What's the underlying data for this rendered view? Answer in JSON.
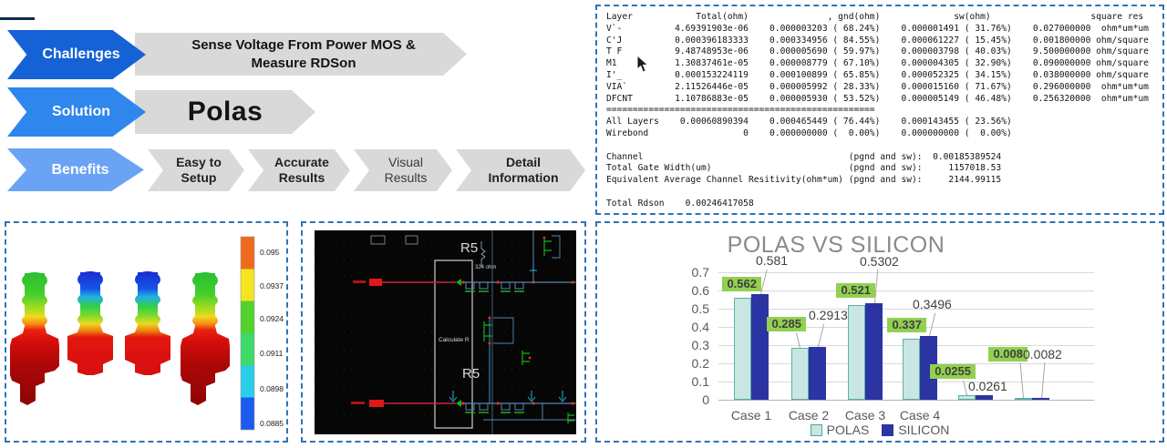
{
  "flow": {
    "challenges": {
      "label": "Challenges",
      "text": "Sense Voltage From Power MOS &  Measure RDSon"
    },
    "solution": {
      "label": "Solution",
      "text": "Polas"
    },
    "benefits": {
      "label": "Benefits",
      "steps": [
        "Easy to Setup",
        "Accurate Results",
        "Visual Results",
        "Detail Information"
      ]
    }
  },
  "terminal": {
    "lines": [
      "Layer            Total(ohm)               , gnd(ohm)              sw(ohm)                   square res",
      "V`-          4.69391903e-06    0.000003203 ( 68.24%)    0.000001491 ( 31.76%)    0.027000000  ohm*um*um",
      "C'J          0.000396183333    0.000334956 ( 84.55%)    0.000061227 ( 15.45%)    0.001800000 ohm/square",
      "T F          9.48748953e-06    0.000005690 ( 59.97%)    0.000003798 ( 40.03%)    9.500000000 ohm/square",
      "M1           1.30837461e-05    0.000008779 ( 67.10%)    0.000004305 ( 32.90%)    0.090000000 ohm/square",
      "I'_          0.000153224119    0.000100899 ( 65.85%)    0.000052325 ( 34.15%)    0.038000000 ohm/square",
      "VIA`         2.11526446e-05    0.000005992 ( 28.33%)    0.000015160 ( 71.67%)    0.296000000  ohm*um*um",
      "DFCNT        1.10786883e-05    0.000005930 ( 53.52%)    0.000005149 ( 46.48%)    0.256320000  ohm*um*um",
      "===================================================",
      "All Layers    0.00060890394    0.000465449 ( 76.44%)    0.000143455 ( 23.56%)",
      "Wirebond                  0    0.000000000 (  0.00%)    0.000000000 (  0.00%)",
      "",
      "Channel                                       (pgnd and sw):  0.00185389524",
      "Total Gate Width(um)                          (pgnd and sw):     1157018.53",
      "Equivalent Average Channel Resitivity(ohm*um) (pgnd and sw):     2144.99115",
      "",
      "Total Rdson    0.00246417058"
    ]
  },
  "thermal": {
    "scale_labels": [
      "0.095",
      "0.0937",
      "0.0924",
      "0.0911",
      "0.0898",
      "0.0885"
    ]
  },
  "schematic": {
    "r5_top": "R5",
    "r5_bottom": "R5",
    "box_label": "Calculate R",
    "res_label": "324 ohm"
  },
  "chart_data": {
    "type": "bar",
    "title": "POLAS VS SILICON",
    "categories": [
      "Case 1",
      "Case 2",
      "Case 3",
      "Case 4",
      "",
      ""
    ],
    "series": [
      {
        "name": "POLAS",
        "color": "#c9e6e3",
        "values": [
          0.562,
          0.285,
          0.521,
          0.337,
          0.0255,
          0.008
        ]
      },
      {
        "name": "SILICON",
        "color": "#2b34a2",
        "values": [
          0.581,
          0.2913,
          0.5302,
          0.3496,
          0.0261,
          0.0082
        ]
      }
    ],
    "ylim": [
      0,
      0.7
    ],
    "yticks": [
      0,
      0.1,
      0.2,
      0.3,
      0.4,
      0.5,
      0.6,
      0.7
    ],
    "ytick_labels": [
      "0",
      "0.1",
      "0.2",
      "0.3",
      "0.4",
      "0.5",
      "0.6",
      "0.7"
    ],
    "grid": true,
    "legend_position": "bottom"
  },
  "colors": {
    "challenges_blue": "#1562d6",
    "solution_blue": "#2f86ec",
    "benefits_blue": "#6aa3f4",
    "chevron_gray": "#d9d9d9",
    "panel_border": "#2e74b5",
    "badge_green": "#92d050",
    "polas_fill": "#c9e6e3",
    "polas_border": "#58b0a9",
    "silicon_fill": "#2b34a2",
    "title_gray": "#8a8a8a"
  }
}
